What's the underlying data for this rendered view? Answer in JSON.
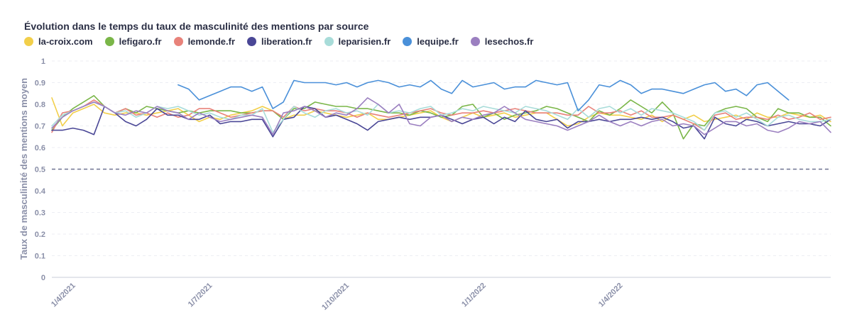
{
  "chart_data": {
    "type": "line",
    "title": "Évolution dans le temps du taux de masculinité des mentions par source",
    "ylabel": "Taux de masculinité des mentions moyen",
    "xlabel": "",
    "ylim": [
      0,
      1
    ],
    "yticks": [
      "0",
      "0.1",
      "0.2",
      "0.3",
      "0.4",
      "0.5",
      "0.6",
      "0.7",
      "0.8",
      "0.9",
      "1"
    ],
    "xticks": [
      {
        "label": "1/4/2021",
        "week": 2
      },
      {
        "label": "1/7/2021",
        "week": 15
      },
      {
        "label": "1/10/2021",
        "week": 28
      },
      {
        "label": "1/1/2022",
        "week": 41
      },
      {
        "label": "1/4/2022",
        "week": 54
      }
    ],
    "reference_line": 0.5,
    "grid": true,
    "legend_position": "top-left",
    "series": [
      {
        "name": "la-croix.com",
        "color": "#f2cf4a",
        "start": 0,
        "values": [
          0.83,
          0.7,
          0.76,
          0.78,
          0.8,
          0.76,
          0.75,
          0.76,
          0.76,
          0.75,
          0.76,
          0.77,
          0.78,
          0.75,
          0.72,
          0.74,
          0.73,
          0.75,
          0.76,
          0.77,
          0.79,
          0.77,
          0.73,
          0.75,
          0.75,
          0.77,
          0.76,
          0.75,
          0.74,
          0.75,
          0.76,
          0.73,
          0.73,
          0.74,
          0.75,
          0.76,
          0.77,
          0.74,
          0.72,
          0.74,
          0.76,
          0.74,
          0.75,
          0.76,
          0.74,
          0.75,
          0.76,
          0.76,
          0.73,
          0.7,
          0.71,
          0.74,
          0.76,
          0.75,
          0.75,
          0.74,
          0.73,
          0.75,
          0.72,
          0.75,
          0.73,
          0.75,
          0.72,
          0.73,
          0.74,
          0.75,
          0.73,
          0.76,
          0.74,
          0.74,
          0.76,
          0.75,
          0.74,
          0.75,
          0.72
        ]
      },
      {
        "name": "lefigaro.fr",
        "color": "#7ab648",
        "start": 0,
        "values": [
          0.68,
          0.74,
          0.78,
          0.81,
          0.84,
          0.79,
          0.76,
          0.78,
          0.76,
          0.79,
          0.78,
          0.77,
          0.76,
          0.77,
          0.76,
          0.77,
          0.77,
          0.77,
          0.76,
          0.76,
          0.77,
          0.77,
          0.73,
          0.78,
          0.78,
          0.81,
          0.8,
          0.79,
          0.79,
          0.78,
          0.78,
          0.77,
          0.76,
          0.76,
          0.75,
          0.77,
          0.76,
          0.74,
          0.75,
          0.79,
          0.8,
          0.74,
          0.76,
          0.73,
          0.75,
          0.76,
          0.77,
          0.79,
          0.78,
          0.76,
          0.74,
          0.72,
          0.77,
          0.75,
          0.78,
          0.82,
          0.79,
          0.76,
          0.81,
          0.76,
          0.64,
          0.71,
          0.7,
          0.76,
          0.78,
          0.79,
          0.78,
          0.74,
          0.72,
          0.78,
          0.76,
          0.76,
          0.74,
          0.74,
          0.7
        ]
      },
      {
        "name": "lemonde.fr",
        "color": "#e8827a",
        "start": 0,
        "values": [
          0.67,
          0.76,
          0.77,
          0.79,
          0.82,
          0.79,
          0.76,
          0.78,
          0.75,
          0.76,
          0.74,
          0.76,
          0.74,
          0.75,
          0.78,
          0.78,
          0.76,
          0.74,
          0.75,
          0.76,
          0.77,
          0.77,
          0.74,
          0.79,
          0.77,
          0.78,
          0.77,
          0.77,
          0.76,
          0.74,
          0.76,
          0.75,
          0.74,
          0.75,
          0.76,
          0.77,
          0.78,
          0.76,
          0.75,
          0.76,
          0.76,
          0.77,
          0.76,
          0.77,
          0.78,
          0.77,
          0.76,
          0.76,
          0.76,
          0.75,
          0.75,
          0.79,
          0.76,
          0.76,
          0.77,
          0.75,
          0.77,
          0.74,
          0.74,
          0.75,
          0.73,
          0.71,
          0.68,
          0.75,
          0.76,
          0.73,
          0.74,
          0.74,
          0.73,
          0.75,
          0.73,
          0.74,
          0.76,
          0.73,
          0.74
        ]
      },
      {
        "name": "liberation.fr",
        "color": "#4a4796",
        "start": 0,
        "values": [
          0.68,
          0.68,
          0.69,
          0.68,
          0.66,
          0.79,
          0.76,
          0.72,
          0.7,
          0.73,
          0.78,
          0.75,
          0.75,
          0.73,
          0.73,
          0.75,
          0.71,
          0.72,
          0.72,
          0.73,
          0.73,
          0.65,
          0.73,
          0.74,
          0.79,
          0.78,
          0.74,
          0.75,
          0.73,
          0.71,
          0.68,
          0.72,
          0.73,
          0.74,
          0.73,
          0.74,
          0.74,
          0.75,
          0.73,
          0.71,
          0.73,
          0.74,
          0.71,
          0.74,
          0.72,
          0.77,
          0.73,
          0.72,
          0.73,
          0.69,
          0.72,
          0.72,
          0.73,
          0.72,
          0.73,
          0.73,
          0.74,
          0.73,
          0.74,
          0.72,
          0.69,
          0.7,
          0.64,
          0.74,
          0.71,
          0.7,
          0.73,
          0.72,
          0.7,
          0.71,
          0.72,
          0.71,
          0.71,
          0.7,
          0.73
        ]
      },
      {
        "name": "leparisien.fr",
        "color": "#a8dcd9",
        "start": 0,
        "values": [
          0.7,
          0.75,
          0.77,
          0.79,
          0.81,
          0.79,
          0.76,
          0.77,
          0.74,
          0.76,
          0.79,
          0.78,
          0.79,
          0.77,
          0.75,
          0.76,
          0.74,
          0.73,
          0.75,
          0.75,
          0.78,
          0.67,
          0.73,
          0.79,
          0.76,
          0.74,
          0.77,
          0.78,
          0.76,
          0.77,
          0.75,
          0.8,
          0.76,
          0.77,
          0.76,
          0.78,
          0.79,
          0.75,
          0.76,
          0.78,
          0.77,
          0.79,
          0.78,
          0.77,
          0.76,
          0.79,
          0.78,
          0.77,
          0.75,
          0.73,
          0.78,
          0.74,
          0.78,
          0.79,
          0.76,
          0.78,
          0.75,
          0.78,
          0.77,
          0.76,
          0.74,
          0.72,
          0.68,
          0.76,
          0.77,
          0.74,
          0.76,
          0.73,
          0.7,
          0.74,
          0.75,
          0.73,
          0.72,
          0.72,
          0.73
        ]
      },
      {
        "name": "lequipe.fr",
        "color": "#4a90d9",
        "start": 12,
        "values": [
          0.89,
          0.87,
          0.82,
          0.84,
          0.86,
          0.88,
          0.88,
          0.86,
          0.88,
          0.78,
          0.81,
          0.91,
          0.9,
          0.9,
          0.9,
          0.89,
          0.9,
          0.88,
          0.9,
          0.91,
          0.9,
          0.88,
          0.89,
          0.88,
          0.91,
          0.87,
          0.85,
          0.91,
          0.88,
          0.89,
          0.9,
          0.87,
          0.88,
          0.88,
          0.91,
          0.9,
          0.89,
          0.9,
          0.77,
          0.82,
          0.89,
          0.88,
          0.91,
          0.89,
          0.85,
          0.87,
          0.87,
          0.86,
          0.85,
          0.87,
          0.89,
          0.9,
          0.86,
          0.87,
          0.84,
          0.89,
          0.9,
          0.86,
          0.82
        ]
      },
      {
        "name": "lesechos.fr",
        "color": "#9b7fc0",
        "start": 0,
        "values": [
          0.69,
          0.74,
          0.77,
          0.79,
          0.81,
          0.79,
          0.76,
          0.75,
          0.77,
          0.76,
          0.79,
          0.77,
          0.76,
          0.73,
          0.76,
          0.74,
          0.72,
          0.73,
          0.74,
          0.75,
          0.74,
          0.66,
          0.76,
          0.77,
          0.79,
          0.77,
          0.74,
          0.76,
          0.75,
          0.78,
          0.83,
          0.8,
          0.76,
          0.8,
          0.71,
          0.7,
          0.74,
          0.75,
          0.72,
          0.74,
          0.73,
          0.75,
          0.76,
          0.79,
          0.76,
          0.73,
          0.72,
          0.71,
          0.7,
          0.68,
          0.7,
          0.72,
          0.75,
          0.72,
          0.7,
          0.72,
          0.7,
          0.72,
          0.73,
          0.7,
          0.71,
          0.7,
          0.66,
          0.69,
          0.72,
          0.72,
          0.7,
          0.71,
          0.68,
          0.67,
          0.69,
          0.72,
          0.71,
          0.72,
          0.67
        ]
      }
    ]
  }
}
